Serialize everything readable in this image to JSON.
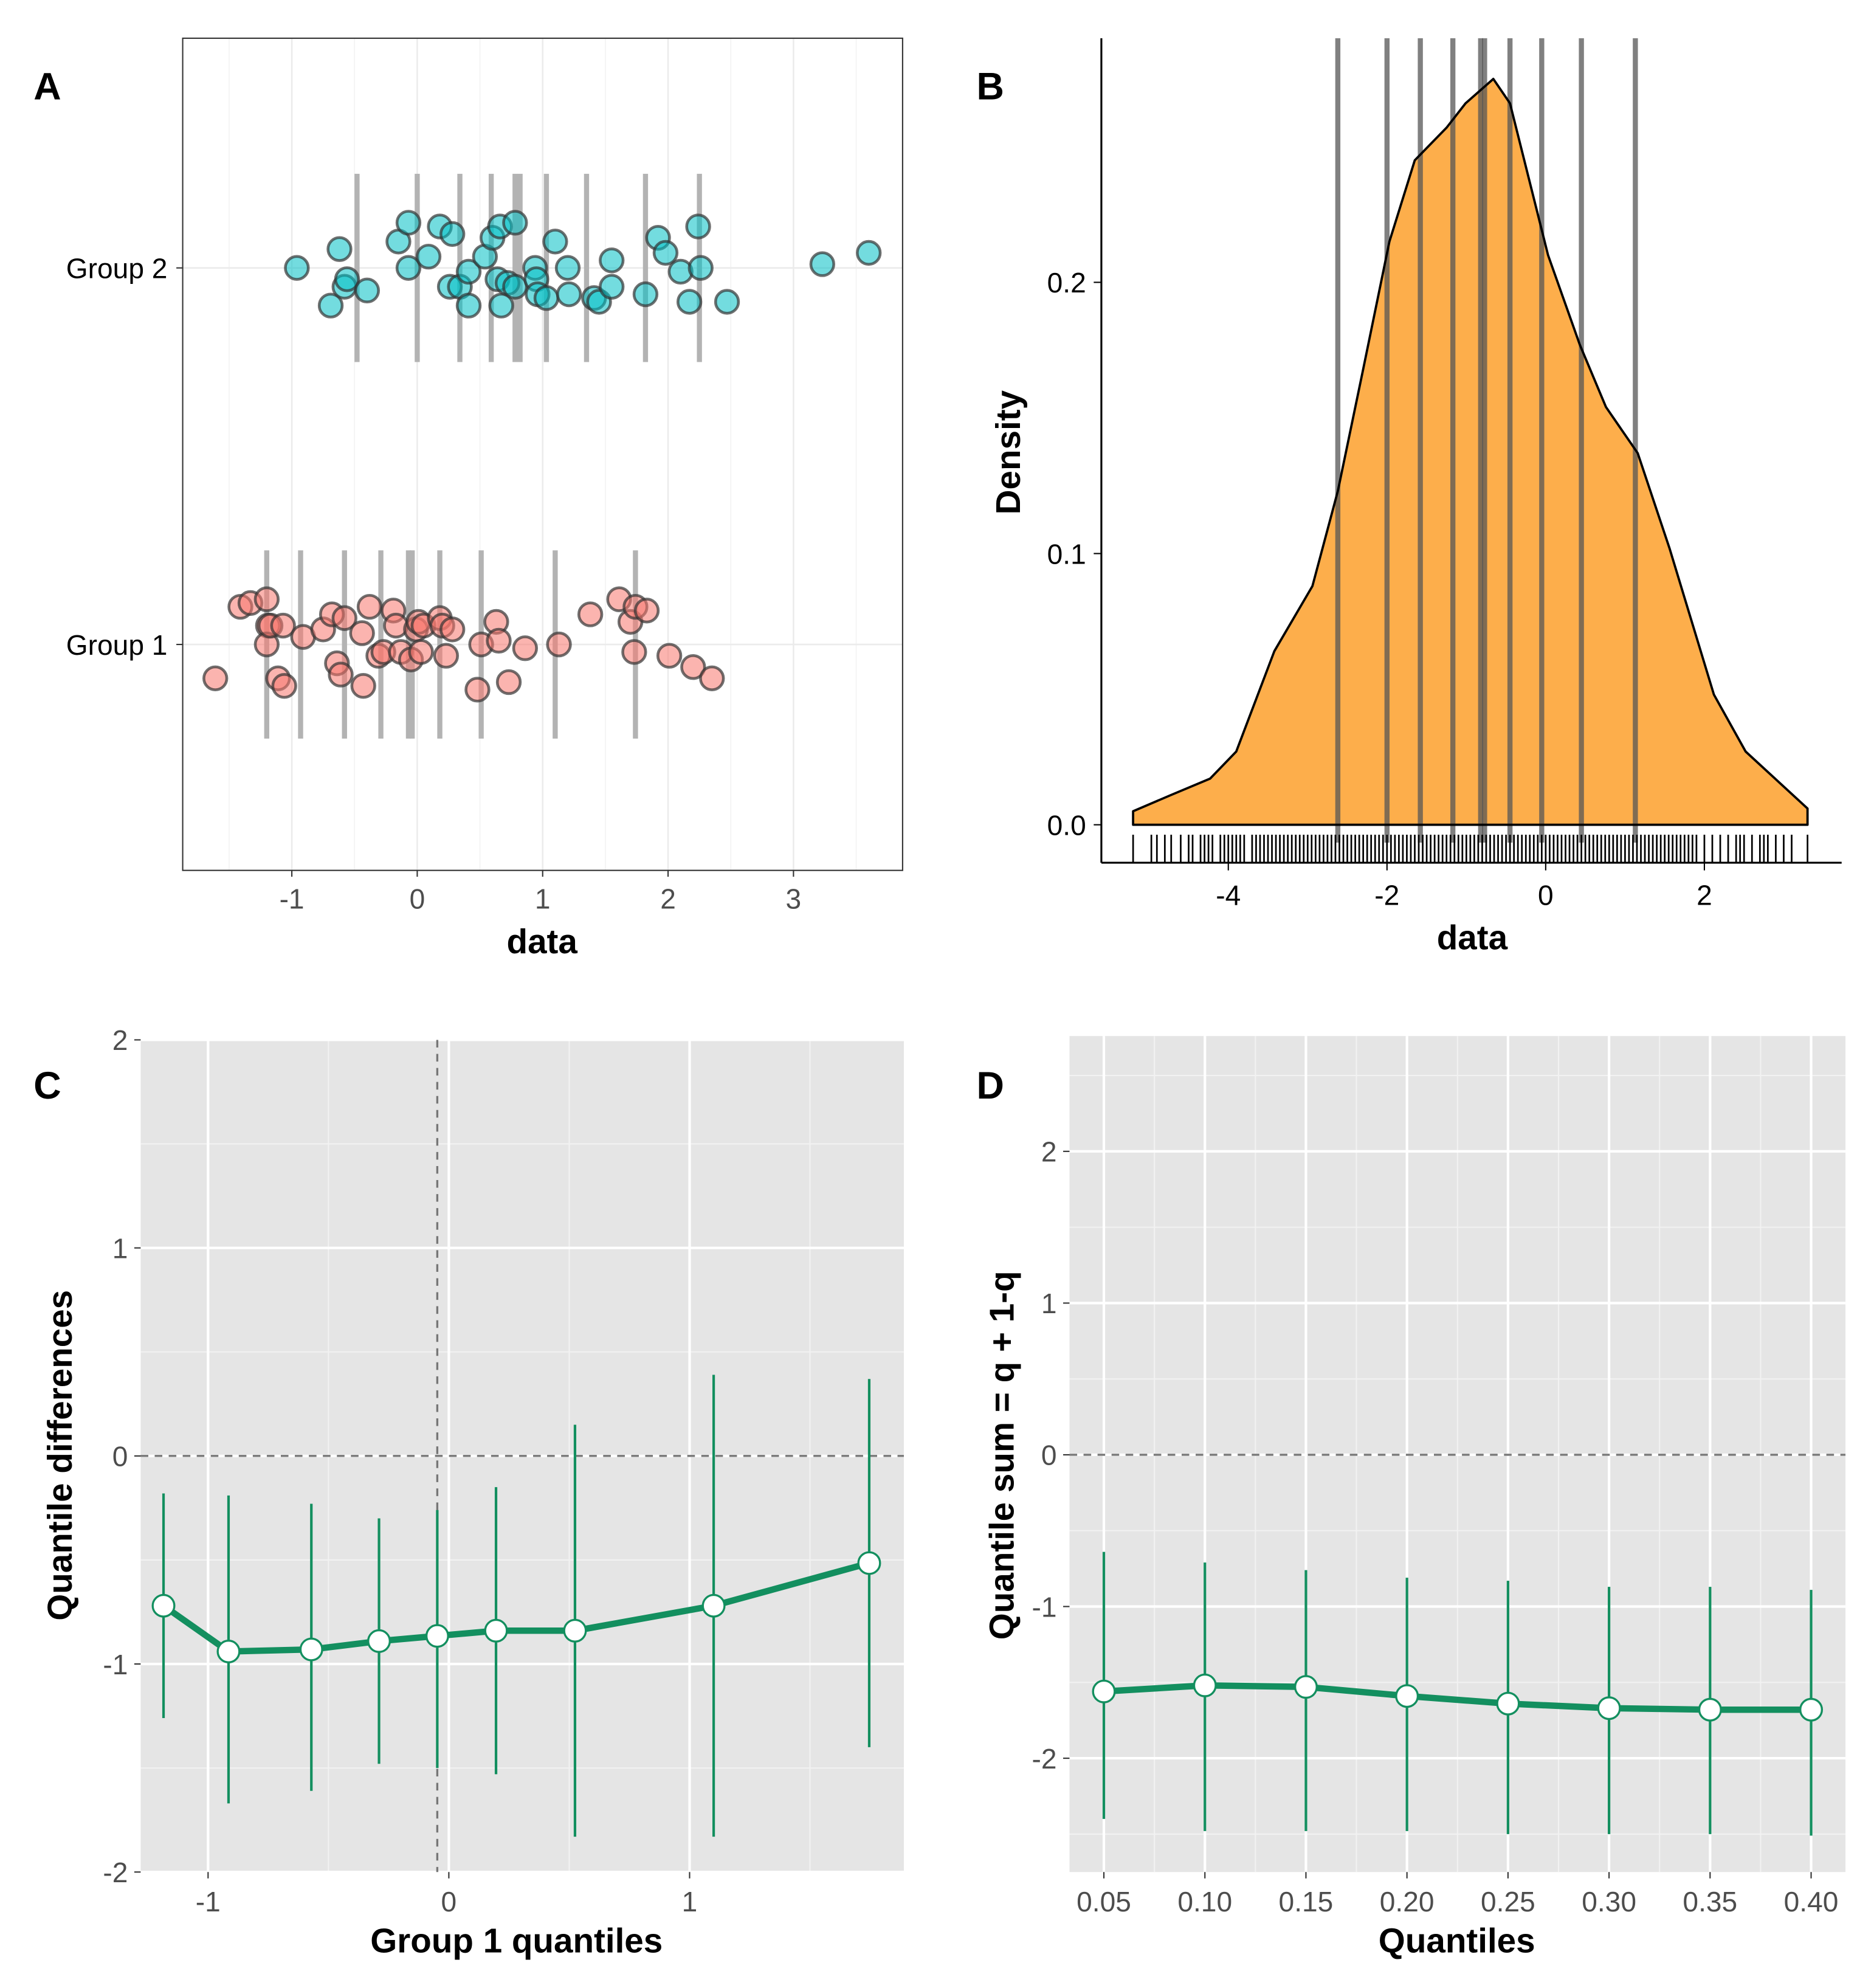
{
  "panel_letters": {
    "a": "A",
    "b": "B",
    "c": "C",
    "d": "D"
  },
  "colors": {
    "group1": "#F8766D",
    "group2": "#00BFC4",
    "density_fill": "#FDAE4B",
    "quantile_line": "#138F5F",
    "panel_bg": "#E5E5E5"
  },
  "chart_data": [
    {
      "panel": "A",
      "type": "scatter",
      "xlabel": "data",
      "ylabel": "",
      "xlim": [
        -1.87,
        3.87
      ],
      "xticks": [
        -1,
        0,
        1,
        2,
        3
      ],
      "categories": [
        "Group 1",
        "Group 2"
      ],
      "grid": true,
      "series": [
        {
          "group": "Group 2",
          "color": "#00BFC4",
          "x": [
            -0.96,
            -0.62,
            -0.69,
            -0.58,
            -0.56,
            -0.4,
            -0.15,
            -0.07,
            -0.07,
            0.09,
            0.18,
            0.28,
            0.26,
            0.34,
            0.41,
            0.41,
            0.54,
            0.6,
            0.66,
            0.67,
            0.64,
            0.72,
            0.78,
            0.78,
            0.94,
            0.95,
            0.96,
            1.03,
            1.1,
            1.2,
            1.21,
            1.41,
            1.45,
            1.55,
            1.55,
            1.82,
            1.92,
            1.98,
            2.1,
            2.17,
            2.24,
            2.26,
            2.47,
            3.23,
            3.6
          ],
          "y_jittered": [
            2.0,
            2.05,
            1.9,
            1.95,
            1.97,
            1.94,
            2.07,
            2.12,
            2.0,
            2.03,
            2.11,
            2.09,
            1.95,
            1.95,
            1.99,
            1.9,
            2.03,
            2.08,
            2.11,
            1.9,
            1.97,
            1.96,
            2.12,
            1.95,
            2.0,
            1.97,
            1.93,
            1.92,
            2.07,
            2.0,
            1.93,
            1.92,
            1.91,
            2.02,
            1.95,
            1.93,
            2.08,
            2.04,
            1.99,
            1.91,
            2.11,
            2.0,
            1.91,
            2.01,
            2.04
          ],
          "deciles": [
            -0.48,
            0.0,
            0.34,
            0.59,
            0.78,
            0.82,
            1.03,
            1.35,
            1.82,
            2.25
          ]
        },
        {
          "group": "Group 1",
          "color": "#F8766D",
          "x": [
            -1.61,
            -1.41,
            -1.33,
            -1.2,
            -1.19,
            -1.2,
            -1.17,
            -1.11,
            -1.06,
            -1.07,
            -0.91,
            -0.75,
            -0.68,
            -0.64,
            -0.61,
            -0.58,
            -0.44,
            -0.43,
            -0.38,
            -0.31,
            -0.27,
            -0.19,
            -0.17,
            -0.13,
            -0.05,
            -0.01,
            0.01,
            0.03,
            0.05,
            0.18,
            0.2,
            0.23,
            0.28,
            0.48,
            0.51,
            0.63,
            0.65,
            0.73,
            0.86,
            1.13,
            1.38,
            1.61,
            1.7,
            1.73,
            1.74,
            1.83,
            2.01,
            2.2,
            2.35
          ],
          "y_jittered": [
            0.91,
            1.1,
            1.11,
            1.12,
            1.05,
            1.0,
            1.05,
            0.91,
            0.89,
            1.05,
            1.02,
            1.04,
            1.08,
            0.95,
            0.92,
            1.07,
            1.03,
            0.89,
            1.1,
            0.97,
            0.98,
            1.09,
            1.05,
            0.98,
            0.96,
            1.04,
            1.06,
            0.98,
            1.05,
            1.07,
            1.05,
            0.97,
            1.04,
            0.88,
            1.0,
            1.06,
            1.01,
            0.9,
            0.99,
            1.0,
            1.08,
            1.12,
            1.06,
            0.98,
            1.1,
            1.09,
            0.97,
            0.94,
            0.91
          ],
          "deciles": [
            -1.2,
            -0.93,
            -0.58,
            -0.29,
            -0.07,
            -0.04,
            0.18,
            0.51,
            1.1,
            1.74
          ]
        }
      ]
    },
    {
      "panel": "B",
      "type": "area",
      "xlabel": "data",
      "ylabel": "Density",
      "xlim": [
        -5.6,
        3.73
      ],
      "ylim": [
        -0.014,
        0.29
      ],
      "xticks": [
        -4,
        -2,
        0,
        2
      ],
      "yticks": [
        0.0,
        0.1,
        0.2
      ],
      "ytick_labels": [
        "0.0",
        "0.1",
        "0.2"
      ],
      "density": {
        "x": [
          -5.2,
          -4.72,
          -4.23,
          -3.9,
          -3.42,
          -2.94,
          -2.62,
          -2.3,
          -1.97,
          -1.65,
          -1.25,
          -1.01,
          -0.66,
          -0.45,
          -0.21,
          0.03,
          0.43,
          0.76,
          1.16,
          1.56,
          2.12,
          2.52,
          3.3
        ],
        "y": [
          0.005,
          0.011,
          0.017,
          0.027,
          0.064,
          0.088,
          0.123,
          0.168,
          0.215,
          0.245,
          0.257,
          0.266,
          0.275,
          0.266,
          0.238,
          0.21,
          0.177,
          0.154,
          0.137,
          0.102,
          0.048,
          0.027,
          0.006
        ]
      },
      "deciles": [
        -2.62,
        -2.0,
        -1.58,
        -1.17,
        -0.82,
        -0.77,
        -0.45,
        -0.05,
        0.45,
        1.13
      ],
      "rug": [
        -5.2,
        -4.97,
        -4.9,
        -4.8,
        -4.72,
        -4.6,
        -4.5,
        -4.45,
        -4.35,
        -4.3,
        -4.25,
        -4.2,
        -4.1,
        -4.05,
        -4.0,
        -3.95,
        -3.9,
        -3.85,
        -3.8,
        -3.7,
        -3.65,
        -3.6,
        -3.55,
        -3.5,
        -3.45,
        -3.4,
        -3.35,
        -3.3,
        -3.25,
        -3.2,
        -3.15,
        -3.1,
        -3.05,
        -3.0,
        -2.95,
        -2.9,
        -2.85,
        -2.8,
        -2.75,
        -2.7,
        -2.65,
        -2.6,
        -2.55,
        -2.5,
        -2.45,
        -2.4,
        -2.35,
        -2.3,
        -2.25,
        -2.2,
        -2.15,
        -2.1,
        -2.05,
        -2.0,
        -1.95,
        -1.9,
        -1.85,
        -1.8,
        -1.75,
        -1.7,
        -1.65,
        -1.6,
        -1.55,
        -1.5,
        -1.45,
        -1.4,
        -1.35,
        -1.3,
        -1.25,
        -1.2,
        -1.15,
        -1.1,
        -1.05,
        -1.0,
        -0.95,
        -0.9,
        -0.85,
        -0.8,
        -0.75,
        -0.7,
        -0.65,
        -0.6,
        -0.55,
        -0.5,
        -0.45,
        -0.4,
        -0.35,
        -0.3,
        -0.25,
        -0.2,
        -0.15,
        -0.1,
        -0.05,
        0.0,
        0.05,
        0.1,
        0.15,
        0.2,
        0.25,
        0.3,
        0.35,
        0.4,
        0.45,
        0.5,
        0.55,
        0.6,
        0.65,
        0.7,
        0.75,
        0.8,
        0.85,
        0.9,
        0.95,
        1.0,
        1.05,
        1.1,
        1.15,
        1.2,
        1.25,
        1.3,
        1.35,
        1.4,
        1.45,
        1.5,
        1.55,
        1.6,
        1.65,
        1.7,
        1.75,
        1.8,
        1.85,
        1.9,
        2.0,
        2.1,
        2.2,
        2.3,
        2.4,
        2.45,
        2.5,
        2.6,
        2.7,
        2.75,
        2.8,
        2.9,
        3.0,
        3.1,
        3.3
      ]
    },
    {
      "panel": "C",
      "type": "line",
      "xlabel": "Group 1 quantiles",
      "ylabel": "Quantile differences",
      "xlim": [
        -1.28,
        1.89
      ],
      "ylim": [
        -2,
        2
      ],
      "xticks": [
        -1,
        0,
        1
      ],
      "yticks": [
        -2,
        -1,
        0,
        1,
        2
      ],
      "vline": -0.048,
      "hline": 0,
      "x": [
        -1.185,
        -0.915,
        -0.571,
        -0.29,
        -0.048,
        0.196,
        0.524,
        1.1,
        1.746
      ],
      "y": [
        -0.72,
        -0.94,
        -0.93,
        -0.89,
        -0.865,
        -0.84,
        -0.84,
        -0.72,
        -0.515
      ],
      "ci_upper": [
        -0.18,
        -0.19,
        -0.23,
        -0.3,
        -0.26,
        -0.15,
        0.15,
        0.39,
        0.37
      ],
      "ci_lower": [
        -1.26,
        -1.67,
        -1.61,
        -1.48,
        -1.5,
        -1.53,
        -1.83,
        -1.83,
        -1.4
      ]
    },
    {
      "panel": "D",
      "type": "line",
      "xlabel": "Quantiles",
      "ylabel": "Quantile sum = q + 1-q",
      "xlim": [
        0.033,
        0.417
      ],
      "ylim": [
        -2.75,
        2.76
      ],
      "xticks": [
        0.05,
        0.1,
        0.15,
        0.2,
        0.25,
        0.3,
        0.35,
        0.4
      ],
      "xtick_labels": [
        "0.05",
        "0.10",
        "0.15",
        "0.20",
        "0.25",
        "0.30",
        "0.35",
        "0.40"
      ],
      "yticks": [
        -2,
        -1,
        0,
        1,
        2
      ],
      "hline": 0,
      "x": [
        0.05,
        0.1,
        0.15,
        0.2,
        0.25,
        0.3,
        0.35,
        0.4
      ],
      "y": [
        -1.56,
        -1.52,
        -1.53,
        -1.59,
        -1.64,
        -1.67,
        -1.68,
        -1.68
      ],
      "ci_upper": [
        -0.64,
        -0.71,
        -0.76,
        -0.81,
        -0.83,
        -0.87,
        -0.87,
        -0.89
      ],
      "ci_lower": [
        -2.4,
        -2.48,
        -2.48,
        -2.48,
        -2.5,
        -2.5,
        -2.5,
        -2.51
      ]
    }
  ]
}
